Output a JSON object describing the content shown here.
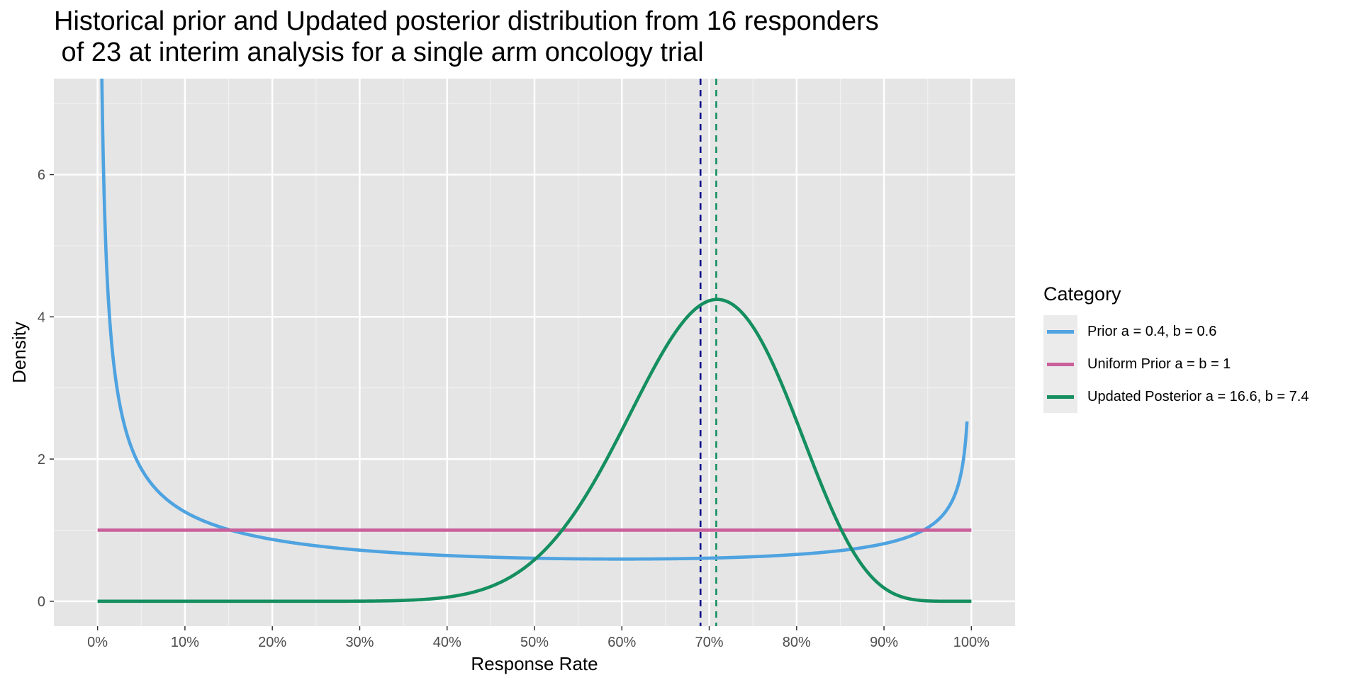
{
  "chart_data": {
    "type": "line",
    "title": "Historical prior and Updated posterior distribution from 16 responders\n of 23 at interim analysis for a single arm oncology trial",
    "xlabel": "Response Rate",
    "ylabel": "Density",
    "xlim": [
      -0.05,
      1.05
    ],
    "ylim": [
      -0.35,
      7.35
    ],
    "x_ticks": [
      0,
      0.1,
      0.2,
      0.3,
      0.4,
      0.5,
      0.6,
      0.7,
      0.8,
      0.9,
      1.0
    ],
    "x_tick_labels": [
      "0%",
      "10%",
      "20%",
      "30%",
      "40%",
      "50%",
      "60%",
      "70%",
      "80%",
      "90%",
      "100%"
    ],
    "y_ticks": [
      0,
      2,
      4,
      6
    ],
    "y_tick_labels": [
      "0",
      "2",
      "4",
      "6"
    ],
    "grid": true,
    "panel_background": "#e5e5e5",
    "legend": {
      "title": "Category",
      "placement": "right"
    },
    "series": [
      {
        "name": "Prior a = 0.4, b = 0.6",
        "color": "#4ea3e0",
        "distribution": "beta",
        "alpha": 0.4,
        "beta": 0.6,
        "x_range": [
          0,
          0.995
        ]
      },
      {
        "name": "Uniform Prior a = b = 1",
        "color": "#c9609b",
        "distribution": "beta",
        "alpha": 1,
        "beta": 1,
        "x_range": [
          0,
          1
        ]
      },
      {
        "name": "Updated Posterior a = 16.6, b = 7.4",
        "color": "#158f60",
        "distribution": "beta",
        "alpha": 16.6,
        "beta": 7.4,
        "x_range": [
          0,
          1
        ]
      }
    ],
    "vlines": [
      {
        "x": 0.69,
        "color": "#0d0d8c",
        "style": "dashed"
      },
      {
        "x": 0.708,
        "color": "#158f60",
        "style": "dashed"
      }
    ]
  }
}
